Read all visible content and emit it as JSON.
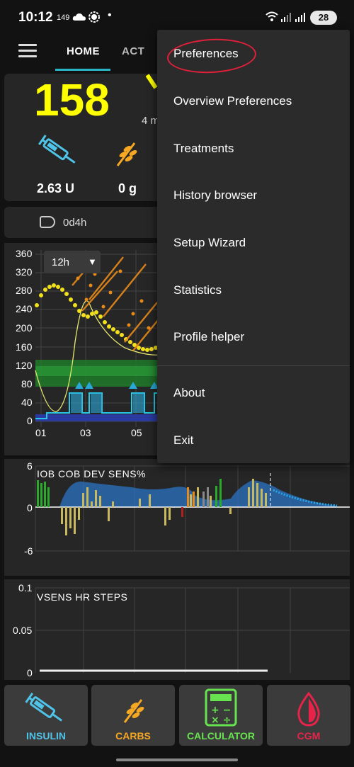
{
  "status_bar": {
    "time": "10:12",
    "small": "149",
    "dot": "•",
    "battery": "28"
  },
  "tabs": {
    "home": "HOME",
    "act": "ACT"
  },
  "overview": {
    "bg": "158",
    "time_ago": "4 m",
    "iob": "2.63 U",
    "cob": "0 g",
    "pump_age": "0d4h"
  },
  "bg_graph": {
    "range": "12h",
    "y_ticks": [
      "360",
      "320",
      "280",
      "240",
      "200",
      "160",
      "120",
      "80",
      "40",
      "0"
    ],
    "x_ticks": [
      "01",
      "03",
      "05"
    ]
  },
  "iob_graph": {
    "title": "IOB COB DEV SENS%",
    "y_ticks": [
      "6",
      "0",
      "-6"
    ]
  },
  "sens_graph": {
    "title": "VSENS HR STEPS",
    "y_ticks": [
      "0.1",
      "0.05",
      "0"
    ]
  },
  "menu": {
    "items": [
      "Preferences",
      "Overview Preferences",
      "Treatments",
      "History browser",
      "Setup Wizard",
      "Statistics",
      "Profile helper",
      "About",
      "Exit"
    ]
  },
  "buttons": {
    "insulin": "INSULIN",
    "carbs": "CARBS",
    "calculator": "CALCULATOR",
    "cgm": "CGM"
  },
  "colors": {
    "bg_value": "#ffff00",
    "insulin": "#4fc3e8",
    "carbs": "#f6a823",
    "calculator": "#66e34f",
    "cgm": "#e8234a",
    "accent": "#29b6c6"
  }
}
